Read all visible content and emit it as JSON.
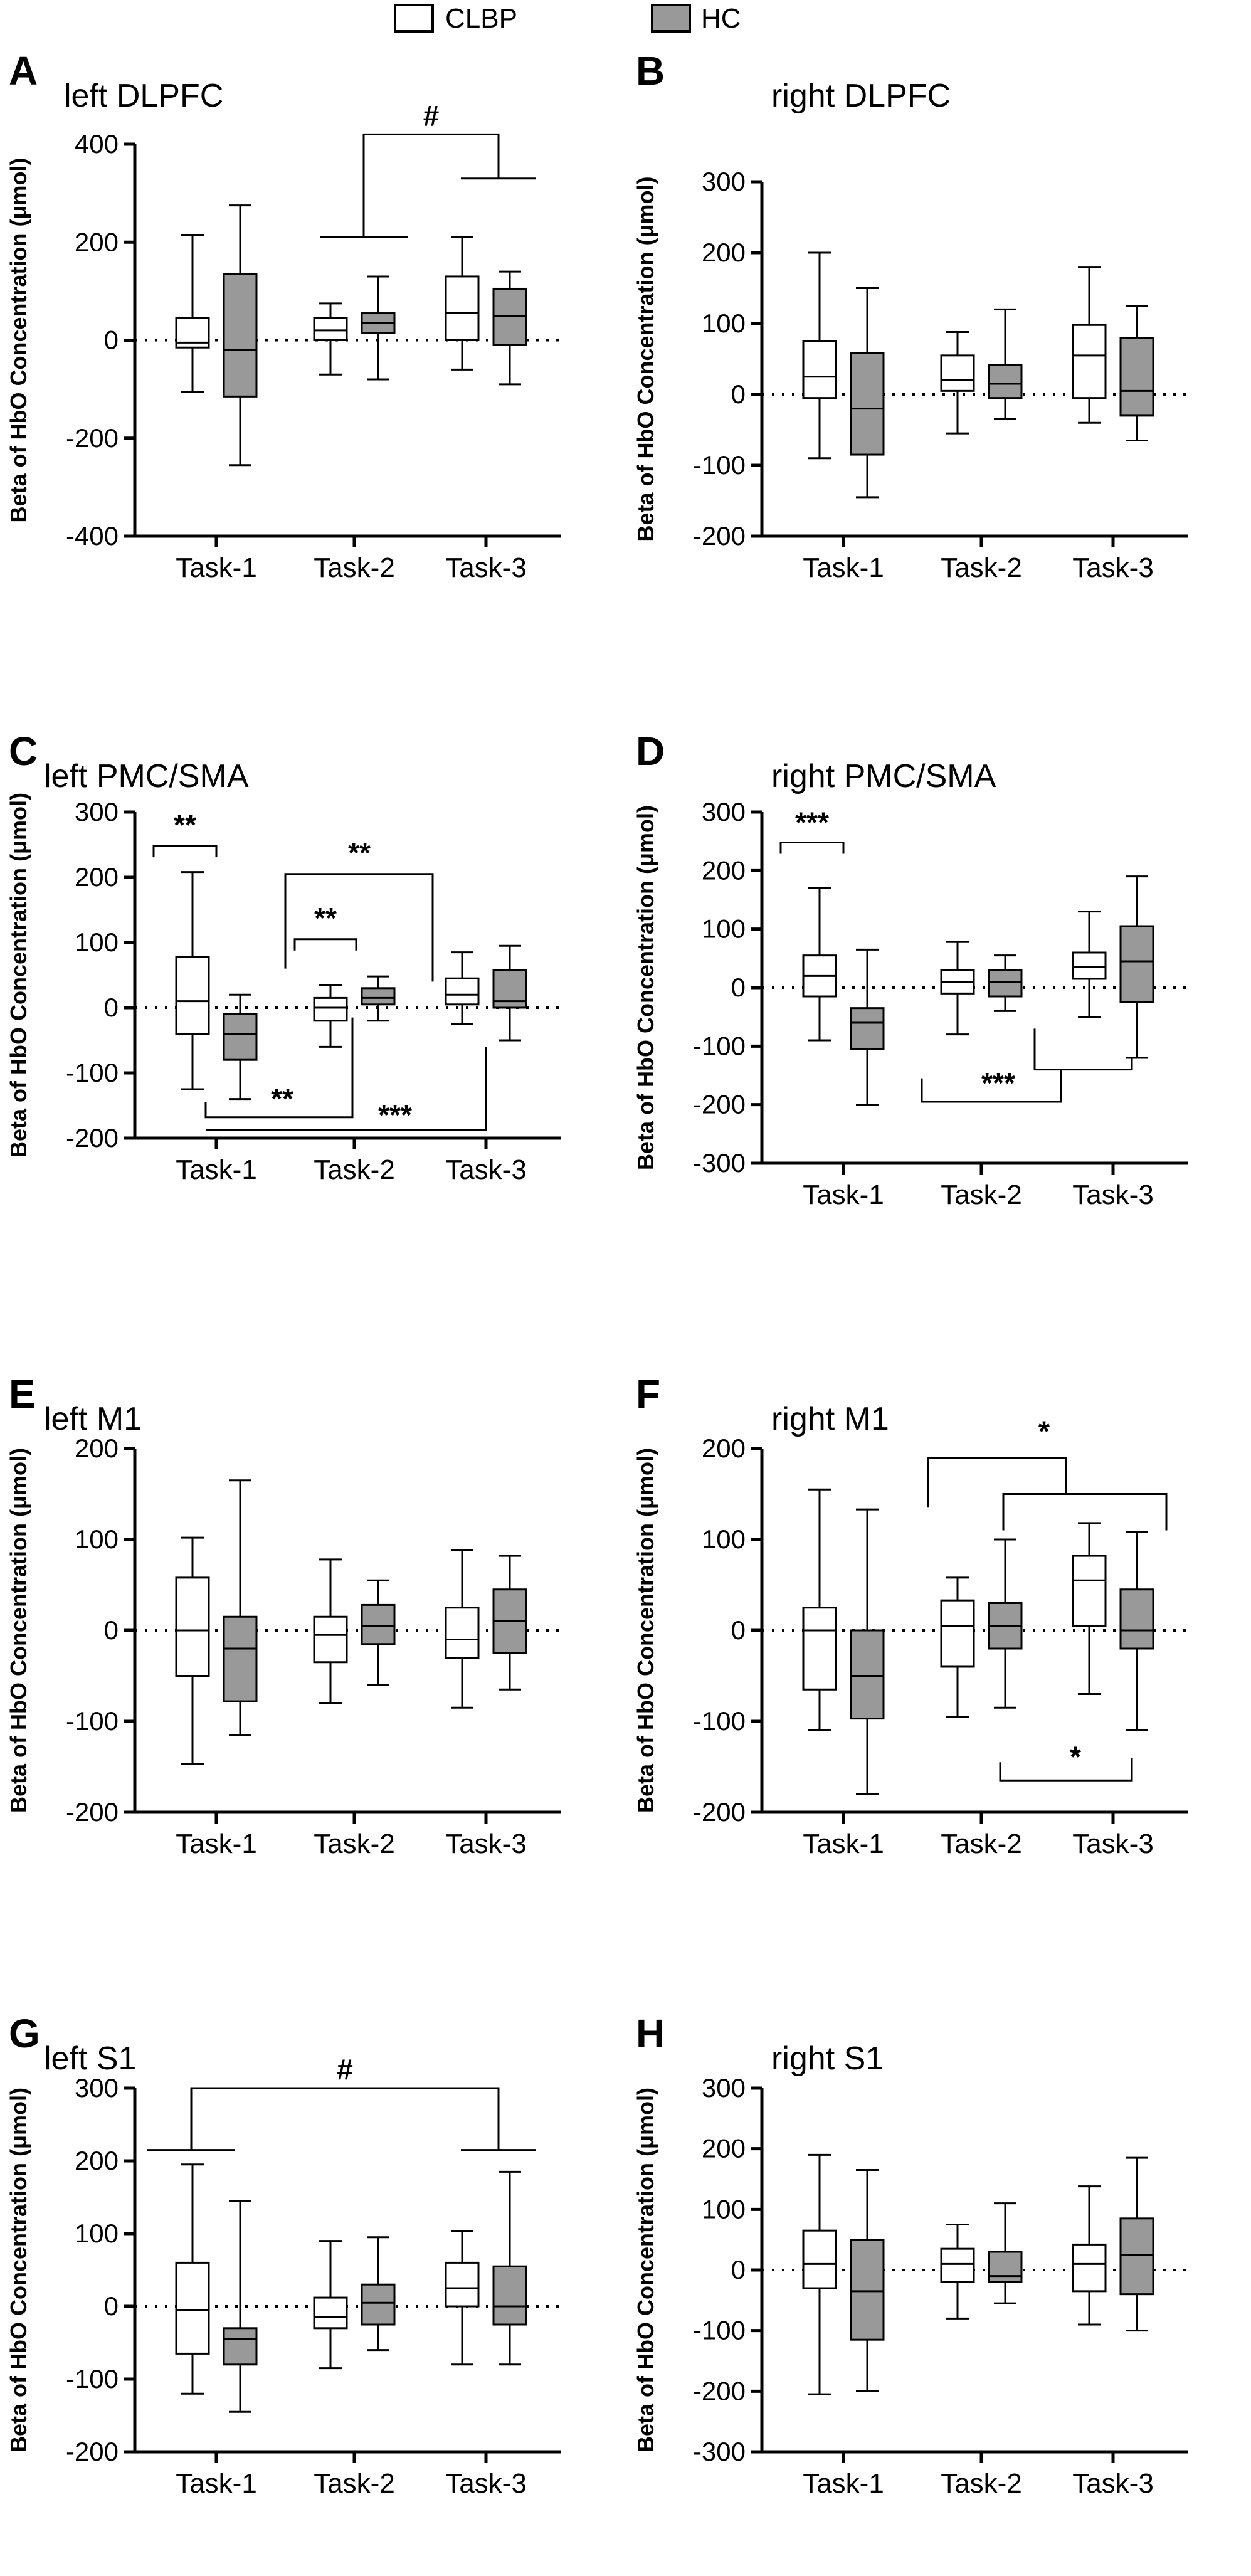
{
  "legend": [
    {
      "label": "CLBP",
      "color": "#ffffff"
    },
    {
      "label": "HC",
      "color": "#999999"
    }
  ],
  "colors": {
    "clbp_fill": "#ffffff",
    "hc_fill": "#999999",
    "stroke": "#000000"
  },
  "chart_data": [
    {
      "type": "boxplot",
      "letter": "A",
      "title": "left DLPFC",
      "ylabel": "Beta of  HbO  Concentration (μmol)",
      "ylim": [
        -400,
        400
      ],
      "yticks": [
        400,
        200,
        0,
        -200,
        -400
      ],
      "categories": [
        "Task-1",
        "Task-2",
        "Task-3"
      ],
      "series": [
        {
          "name": "CLBP",
          "boxes": [
            {
              "min": -105,
              "q1": -15,
              "median": -5,
              "q3": 45,
              "max": 215
            },
            {
              "min": -70,
              "q1": 0,
              "median": 20,
              "q3": 45,
              "max": 75
            },
            {
              "min": -60,
              "q1": 0,
              "median": 55,
              "q3": 130,
              "max": 210
            }
          ]
        },
        {
          "name": "HC",
          "boxes": [
            {
              "min": -255,
              "q1": -115,
              "median": -20,
              "q3": 135,
              "max": 275
            },
            {
              "min": -80,
              "q1": 15,
              "median": 35,
              "q3": 55,
              "max": 130
            },
            {
              "min": -90,
              "q1": -10,
              "median": 50,
              "q3": 105,
              "max": 140
            }
          ]
        }
      ],
      "annotations": [
        {
          "label": "#"
        }
      ]
    },
    {
      "type": "boxplot",
      "letter": "B",
      "title": "right DLPFC",
      "ylabel": "Beta of  HbO  Concentration (μmol)",
      "ylim": [
        -200,
        300
      ],
      "yticks": [
        300,
        200,
        100,
        0,
        -100,
        -200
      ],
      "categories": [
        "Task-1",
        "Task-2",
        "Task-3"
      ],
      "series": [
        {
          "name": "CLBP",
          "boxes": [
            {
              "min": -90,
              "q1": -5,
              "median": 25,
              "q3": 75,
              "max": 200
            },
            {
              "min": -55,
              "q1": 5,
              "median": 20,
              "q3": 55,
              "max": 88
            },
            {
              "min": -40,
              "q1": -5,
              "median": 55,
              "q3": 98,
              "max": 180
            }
          ]
        },
        {
          "name": "HC",
          "boxes": [
            {
              "min": -145,
              "q1": -85,
              "median": -20,
              "q3": 58,
              "max": 150
            },
            {
              "min": -35,
              "q1": -5,
              "median": 15,
              "q3": 42,
              "max": 120
            },
            {
              "min": -65,
              "q1": -30,
              "median": 5,
              "q3": 80,
              "max": 125
            }
          ]
        }
      ],
      "annotations": []
    },
    {
      "type": "boxplot",
      "letter": "C",
      "title": "left PMC/SMA",
      "ylabel": "Beta of  HbO  Concentration (μmol)",
      "ylim": [
        -200,
        300
      ],
      "yticks": [
        300,
        200,
        100,
        0,
        -100,
        -200
      ],
      "categories": [
        "Task-1",
        "Task-2",
        "Task-3"
      ],
      "series": [
        {
          "name": "CLBP",
          "boxes": [
            {
              "min": -125,
              "q1": -40,
              "median": 10,
              "q3": 78,
              "max": 208
            },
            {
              "min": -60,
              "q1": -20,
              "median": 0,
              "q3": 15,
              "max": 35
            },
            {
              "min": -25,
              "q1": 5,
              "median": 20,
              "q3": 45,
              "max": 85
            }
          ]
        },
        {
          "name": "HC",
          "boxes": [
            {
              "min": -140,
              "q1": -80,
              "median": -40,
              "q3": -10,
              "max": 20
            },
            {
              "min": -20,
              "q1": 5,
              "median": 15,
              "q3": 30,
              "max": 48
            },
            {
              "min": -50,
              "q1": 0,
              "median": 10,
              "q3": 58,
              "max": 95
            }
          ]
        }
      ],
      "annotations": [
        {
          "label": "**"
        },
        {
          "label": "**"
        },
        {
          "label": "**"
        },
        {
          "label": "**"
        },
        {
          "label": "***"
        }
      ]
    },
    {
      "type": "boxplot",
      "letter": "D",
      "title": "right PMC/SMA",
      "ylabel": "Beta of  HbO  Concentration (μmol)",
      "ylim": [
        -300,
        300
      ],
      "yticks": [
        300,
        200,
        100,
        0,
        -100,
        -200,
        -300
      ],
      "categories": [
        "Task-1",
        "Task-2",
        "Task-3"
      ],
      "series": [
        {
          "name": "CLBP",
          "boxes": [
            {
              "min": -90,
              "q1": -15,
              "median": 20,
              "q3": 55,
              "max": 170
            },
            {
              "min": -80,
              "q1": -10,
              "median": 10,
              "q3": 30,
              "max": 78
            },
            {
              "min": -50,
              "q1": 15,
              "median": 35,
              "q3": 60,
              "max": 130
            }
          ]
        },
        {
          "name": "HC",
          "boxes": [
            {
              "min": -200,
              "q1": -105,
              "median": -60,
              "q3": -35,
              "max": 65
            },
            {
              "min": -40,
              "q1": -15,
              "median": 10,
              "q3": 30,
              "max": 55
            },
            {
              "min": -120,
              "q1": -25,
              "median": 45,
              "q3": 105,
              "max": 190
            }
          ]
        }
      ],
      "annotations": [
        {
          "label": "***"
        },
        {
          "label": "***"
        }
      ]
    },
    {
      "type": "boxplot",
      "letter": "E",
      "title": "left M1",
      "ylabel": "Beta of  HbO  Concentration (μmol)",
      "ylim": [
        -200,
        200
      ],
      "yticks": [
        200,
        100,
        0,
        -100,
        -200
      ],
      "categories": [
        "Task-1",
        "Task-2",
        "Task-3"
      ],
      "series": [
        {
          "name": "CLBP",
          "boxes": [
            {
              "min": -147,
              "q1": -50,
              "median": 0,
              "q3": 58,
              "max": 102
            },
            {
              "min": -80,
              "q1": -35,
              "median": -5,
              "q3": 15,
              "max": 78
            },
            {
              "min": -85,
              "q1": -30,
              "median": -10,
              "q3": 25,
              "max": 88
            }
          ]
        },
        {
          "name": "HC",
          "boxes": [
            {
              "min": -115,
              "q1": -78,
              "median": -20,
              "q3": 15,
              "max": 165
            },
            {
              "min": -60,
              "q1": -15,
              "median": 5,
              "q3": 28,
              "max": 55
            },
            {
              "min": -65,
              "q1": -25,
              "median": 10,
              "q3": 45,
              "max": 82
            }
          ]
        }
      ],
      "annotations": []
    },
    {
      "type": "boxplot",
      "letter": "F",
      "title": "right M1",
      "ylabel": "Beta of  HbO  Concentration (μmol)",
      "ylim": [
        -200,
        200
      ],
      "yticks": [
        200,
        100,
        0,
        -100,
        -200
      ],
      "categories": [
        "Task-1",
        "Task-2",
        "Task-3"
      ],
      "series": [
        {
          "name": "CLBP",
          "boxes": [
            {
              "min": -110,
              "q1": -65,
              "median": 0,
              "q3": 25,
              "max": 155
            },
            {
              "min": -95,
              "q1": -40,
              "median": 5,
              "q3": 33,
              "max": 58
            },
            {
              "min": -70,
              "q1": 5,
              "median": 55,
              "q3": 82,
              "max": 118
            }
          ]
        },
        {
          "name": "HC",
          "boxes": [
            {
              "min": -180,
              "q1": -97,
              "median": -50,
              "q3": 0,
              "max": 133
            },
            {
              "min": -85,
              "q1": -20,
              "median": 5,
              "q3": 30,
              "max": 100
            },
            {
              "min": -110,
              "q1": -20,
              "median": 0,
              "q3": 45,
              "max": 108
            }
          ]
        }
      ],
      "annotations": [
        {
          "label": "*"
        },
        {
          "label": "*"
        }
      ]
    },
    {
      "type": "boxplot",
      "letter": "G",
      "title": "left S1",
      "ylabel": "Beta of  HbO  Concentration (μmol)",
      "ylim": [
        -200,
        300
      ],
      "yticks": [
        300,
        200,
        100,
        0,
        -100,
        -200
      ],
      "categories": [
        "Task-1",
        "Task-2",
        "Task-3"
      ],
      "series": [
        {
          "name": "CLBP",
          "boxes": [
            {
              "min": -120,
              "q1": -65,
              "median": -5,
              "q3": 60,
              "max": 195
            },
            {
              "min": -85,
              "q1": -30,
              "median": -15,
              "q3": 12,
              "max": 90
            },
            {
              "min": -80,
              "q1": 0,
              "median": 25,
              "q3": 60,
              "max": 103
            }
          ]
        },
        {
          "name": "HC",
          "boxes": [
            {
              "min": -145,
              "q1": -80,
              "median": -45,
              "q3": -30,
              "max": 145
            },
            {
              "min": -60,
              "q1": -25,
              "median": 5,
              "q3": 30,
              "max": 95
            },
            {
              "min": -80,
              "q1": -25,
              "median": 0,
              "q3": 55,
              "max": 185
            }
          ]
        }
      ],
      "annotations": [
        {
          "label": "#"
        }
      ]
    },
    {
      "type": "boxplot",
      "letter": "H",
      "title": "right S1",
      "ylabel": "Beta of  HbO  Concentration (μmol)",
      "ylim": [
        -300,
        300
      ],
      "yticks": [
        300,
        200,
        100,
        0,
        -100,
        -200,
        -300
      ],
      "categories": [
        "Task-1",
        "Task-2",
        "Task-3"
      ],
      "series": [
        {
          "name": "CLBP",
          "boxes": [
            {
              "min": -205,
              "q1": -30,
              "median": 10,
              "q3": 65,
              "max": 190
            },
            {
              "min": -80,
              "q1": -20,
              "median": 10,
              "q3": 35,
              "max": 75
            },
            {
              "min": -90,
              "q1": -35,
              "median": 10,
              "q3": 42,
              "max": 138
            }
          ]
        },
        {
          "name": "HC",
          "boxes": [
            {
              "min": -200,
              "q1": -115,
              "median": -35,
              "q3": 50,
              "max": 165
            },
            {
              "min": -55,
              "q1": -20,
              "median": -10,
              "q3": 30,
              "max": 110
            },
            {
              "min": -100,
              "q1": -40,
              "median": 25,
              "q3": 85,
              "max": 185
            }
          ]
        }
      ],
      "annotations": []
    }
  ]
}
